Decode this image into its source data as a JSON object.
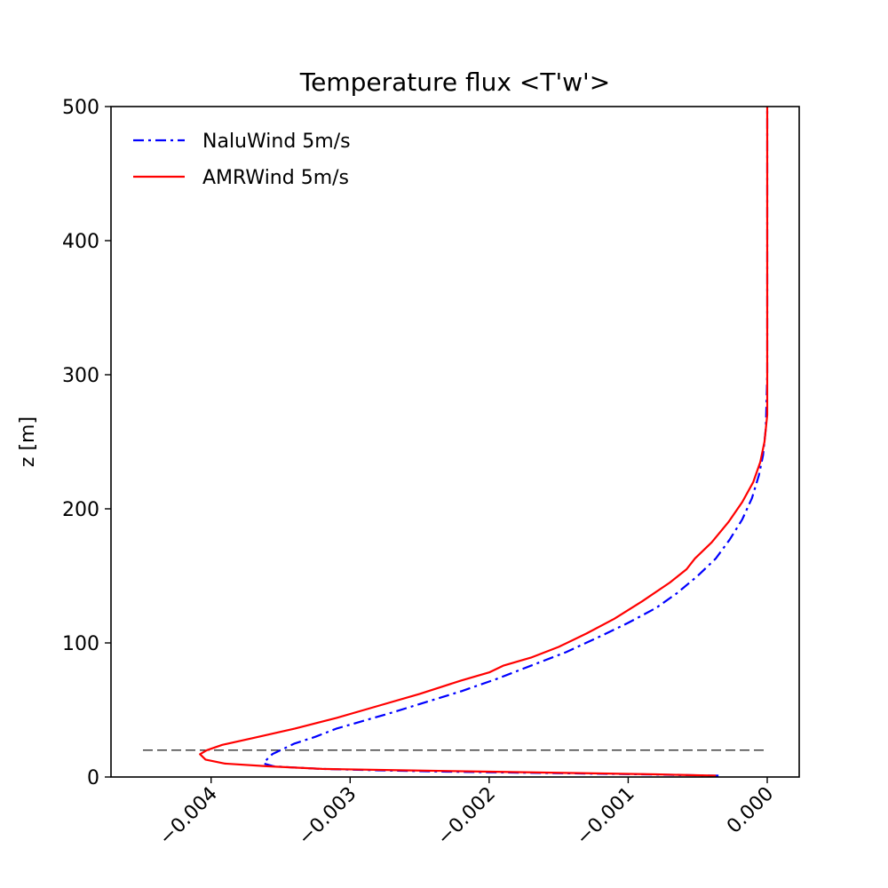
{
  "chart_data": {
    "type": "line",
    "title": "Temperature flux <T'w'>",
    "xlabel": "",
    "ylabel": "z [m]",
    "xlim": [
      -0.00472,
      0.00023
    ],
    "ylim": [
      0,
      500
    ],
    "xticks": [
      -0.004,
      -0.003,
      -0.002,
      -0.001,
      0.0
    ],
    "xtick_labels": [
      "−0.004",
      "−0.003",
      "−0.002",
      "−0.001",
      "0.000"
    ],
    "yticks": [
      0,
      100,
      200,
      300,
      400,
      500
    ],
    "ytick_labels": [
      "0",
      "100",
      "200",
      "300",
      "400",
      "500"
    ],
    "grid": false,
    "legend_position": "top-left",
    "reference_line": {
      "y": 20,
      "x_range": [
        -0.00449,
        0.0
      ],
      "color": "#000000",
      "style": "dashed"
    },
    "series": [
      {
        "name": "NaluWind 5m/s",
        "color": "#0000ff",
        "style": "dashdot",
        "x": [
          -0.00035,
          -0.0009,
          -0.0016,
          -0.0023,
          -0.0028,
          -0.0032,
          -0.0034,
          -0.00355,
          -0.00362,
          -0.0036,
          -0.00356,
          -0.0035,
          -0.0034,
          -0.00325,
          -0.0031,
          -0.0029,
          -0.0027,
          -0.00245,
          -0.0022,
          -0.00195,
          -0.0017,
          -0.00145,
          -0.0012,
          -0.001,
          -0.0008,
          -0.00065,
          -0.0005,
          -0.00037,
          -0.00027,
          -0.00018,
          -0.00011,
          -6e-05,
          -3e-05,
          -1e-05,
          0.0,
          0.0,
          0.0
        ],
        "y": [
          1,
          2,
          3,
          4,
          5,
          6,
          7,
          8,
          10,
          13,
          17,
          20,
          25,
          30,
          36,
          42,
          48,
          56,
          64,
          73,
          83,
          93,
          105,
          115,
          126,
          137,
          150,
          163,
          177,
          192,
          208,
          225,
          240,
          260,
          300,
          400,
          500
        ]
      },
      {
        "name": "AMRWind 5m/s",
        "color": "#ff0000",
        "style": "solid",
        "x": [
          -0.00037,
          -0.0008,
          -0.0014,
          -0.002,
          -0.0026,
          -0.0032,
          -0.0036,
          -0.0039,
          -0.00404,
          -0.00408,
          -0.00403,
          -0.00392,
          -0.0037,
          -0.0034,
          -0.0031,
          -0.0028,
          -0.0025,
          -0.0022,
          -0.002,
          -0.0019,
          -0.0017,
          -0.0015,
          -0.0013,
          -0.0011,
          -0.0009,
          -0.0007,
          -0.00058,
          -0.00052,
          -0.0004,
          -0.00028,
          -0.00018,
          -0.0001,
          -5e-05,
          -2e-05,
          0.0,
          0.0,
          0.0
        ],
        "y": [
          1,
          2,
          3,
          4,
          5,
          6,
          8,
          10,
          13,
          17,
          20,
          24,
          29,
          36,
          44,
          53,
          62,
          72,
          78,
          83,
          89,
          97,
          107,
          118,
          131,
          145,
          155,
          163,
          175,
          190,
          205,
          220,
          235,
          250,
          270,
          400,
          500
        ]
      }
    ]
  }
}
